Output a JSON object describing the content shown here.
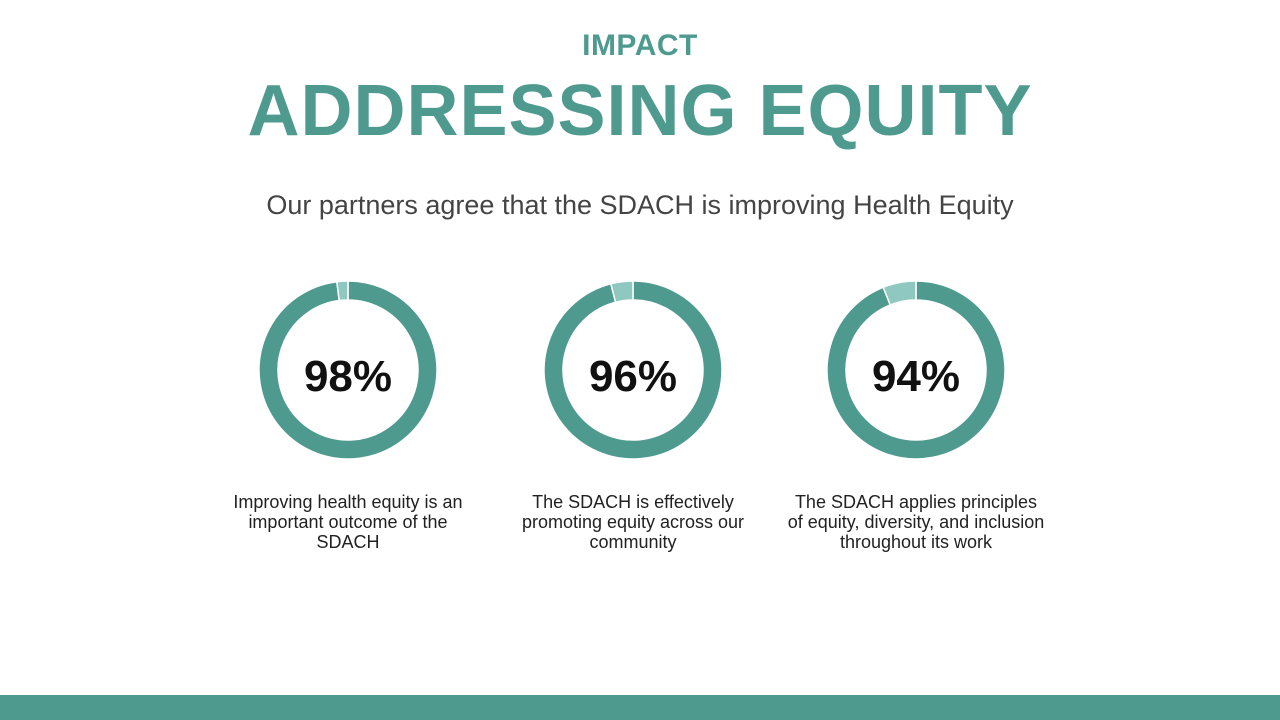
{
  "header": {
    "kicker": "IMPACT",
    "title": "ADDRESSING EQUITY",
    "subtitle": "Our partners agree that the SDACH is improving Health Equity"
  },
  "colors": {
    "accent": "#4f9a8f",
    "remainder": "#8fc8c1",
    "footer": "#4f9a8f"
  },
  "chart_data": [
    {
      "type": "pie",
      "variant": "donut",
      "value_label": "98%",
      "values": [
        98,
        2
      ],
      "caption": "Improving health equity is an important outcome of the SDACH"
    },
    {
      "type": "pie",
      "variant": "donut",
      "value_label": "96%",
      "values": [
        96,
        4
      ],
      "caption": "The SDACH is effectively promoting equity across our community"
    },
    {
      "type": "pie",
      "variant": "donut",
      "value_label": "94%",
      "values": [
        94,
        6
      ],
      "caption": "The SDACH applies principles of equity, diversity, and inclusion throughout its work"
    }
  ]
}
